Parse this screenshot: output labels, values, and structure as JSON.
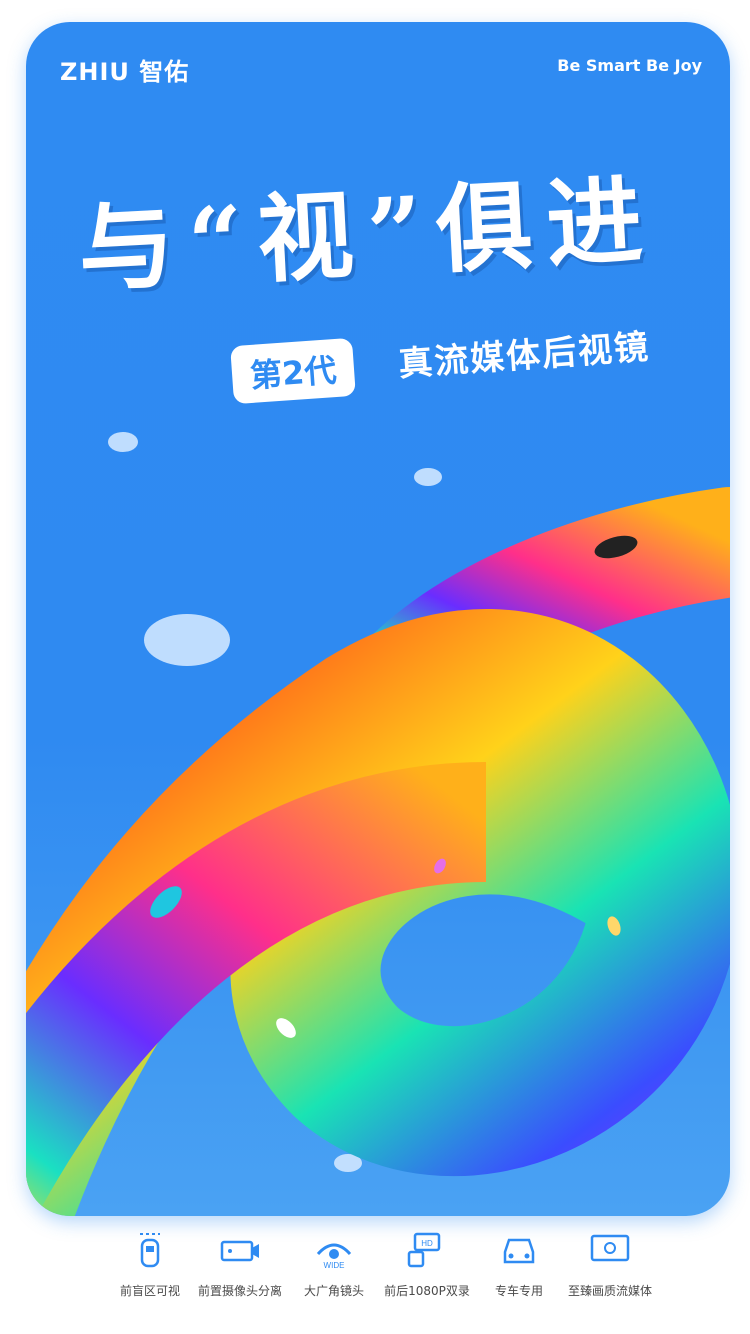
{
  "brand": {
    "logo": "ZHIU 智佑",
    "tagline": "Be Smart Be Joy"
  },
  "headline": "与“视”俱进",
  "badge": "第2代",
  "subtitle": "真流媒体后视镜",
  "features": [
    {
      "icon": "car-blind-spot-icon",
      "label": "前盲区可视"
    },
    {
      "icon": "rec-camera-icon",
      "label": "前置摄像头分离"
    },
    {
      "icon": "wide-angle-lens-icon",
      "label": "大广角镜头"
    },
    {
      "icon": "hd-camera-icon",
      "label": "前后1080P双录"
    },
    {
      "icon": "car-front-icon",
      "label": "专车专用"
    },
    {
      "icon": "display-icon",
      "label": "至臻画质流媒体"
    }
  ],
  "colors": {
    "primary": "#2f8bf2",
    "icon": "#2f8bf2"
  }
}
